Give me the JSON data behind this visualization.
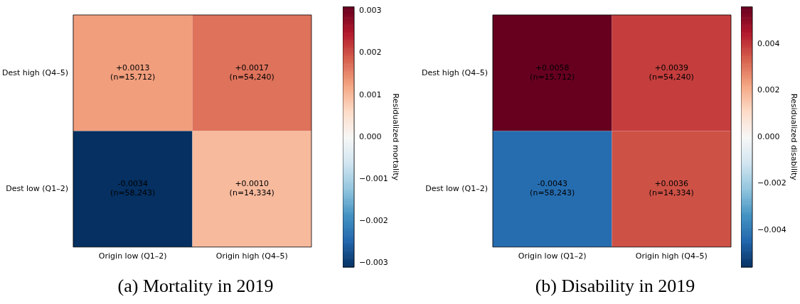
{
  "chart_data": [
    {
      "type": "heatmap",
      "title": "(a) Mortality in 2019",
      "clabel": "Residualized mortality",
      "categories": [
        "Origin low (Q1–2)",
        "Origin high (Q4–5)"
      ],
      "y_categories": [
        "Dest high (Q4–5)",
        "Dest low (Q1–2)"
      ],
      "cells": [
        [
          0.0013,
          0.0017
        ],
        [
          -0.0034,
          0.001
        ]
      ],
      "cell_labels": [
        [
          "+0.0013\n(n=15,712)",
          "+0.0017\n(n=54,240)"
        ],
        [
          "-0.0034\n(n=58,243)",
          "+0.0010\n(n=14,334)"
        ]
      ],
      "clim": [
        -0.0031,
        0.0031
      ],
      "cticks": [
        {
          "value": -0.003,
          "label": "−0.003"
        },
        {
          "value": -0.002,
          "label": "−0.002"
        },
        {
          "value": -0.001,
          "label": "−0.001"
        },
        {
          "value": 0,
          "label": "0.000"
        },
        {
          "value": 0.001,
          "label": "0.001"
        },
        {
          "value": 0.002,
          "label": "0.002"
        },
        {
          "value": 0.003,
          "label": "0.003"
        }
      ]
    },
    {
      "type": "heatmap",
      "title": "(b) Disability in 2019",
      "clabel": "Residualized disability",
      "categories": [
        "Origin low (Q1–2)",
        "Origin high (Q4–5)"
      ],
      "y_categories": [
        "Dest high (Q4–5)",
        "Dest low (Q1–2)"
      ],
      "cells": [
        [
          0.0058,
          0.0039
        ],
        [
          -0.0043,
          0.0036
        ]
      ],
      "cell_labels": [
        [
          "+0.0058\n(n=15,712)",
          "+0.0039\n(n=54,240)"
        ],
        [
          "-0.0043\n(n=58,243)",
          "+0.0036\n(n=14,334)"
        ]
      ],
      "clim": [
        -0.0056,
        0.0056
      ],
      "cticks": [
        {
          "value": -0.004,
          "label": "−0.004"
        },
        {
          "value": -0.002,
          "label": "−0.002"
        },
        {
          "value": 0,
          "label": "0.000"
        },
        {
          "value": 0.002,
          "label": "0.002"
        },
        {
          "value": 0.004,
          "label": "0.004"
        }
      ]
    }
  ]
}
